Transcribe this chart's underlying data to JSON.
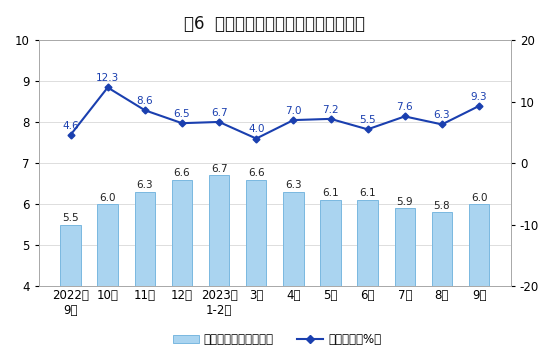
{
  "title": "图6  规模以上工业天然气产量月度走势",
  "categories": [
    "2022年\n9月",
    "10月",
    "11月",
    "12月",
    "2023年\n1-2月",
    "3月",
    "4月",
    "5月",
    "6月",
    "7月",
    "8月",
    "9月"
  ],
  "bar_values": [
    5.5,
    6.0,
    6.3,
    6.6,
    6.7,
    6.6,
    6.3,
    6.1,
    6.1,
    5.9,
    5.8,
    6.0
  ],
  "line_values": [
    4.6,
    12.3,
    8.6,
    6.5,
    6.7,
    4.0,
    7.0,
    7.2,
    5.5,
    7.6,
    6.3,
    9.3
  ],
  "bar_color": "#aad4f0",
  "bar_edge_color": "#7ab8e0",
  "line_color": "#1a3faf",
  "line_marker": "D",
  "left_ylim": [
    4,
    10
  ],
  "left_yticks": [
    4,
    5,
    6,
    7,
    8,
    9,
    10
  ],
  "right_ylim": [
    -20,
    20
  ],
  "right_yticks": [
    -20,
    -10,
    0,
    10,
    20
  ],
  "legend_bar_label": "日均产量（亿立方米）",
  "legend_line_label": "当月增速（%）",
  "title_fontsize": 12,
  "tick_fontsize": 8.5,
  "anno_fontsize": 7.5,
  "background_color": "#ffffff"
}
